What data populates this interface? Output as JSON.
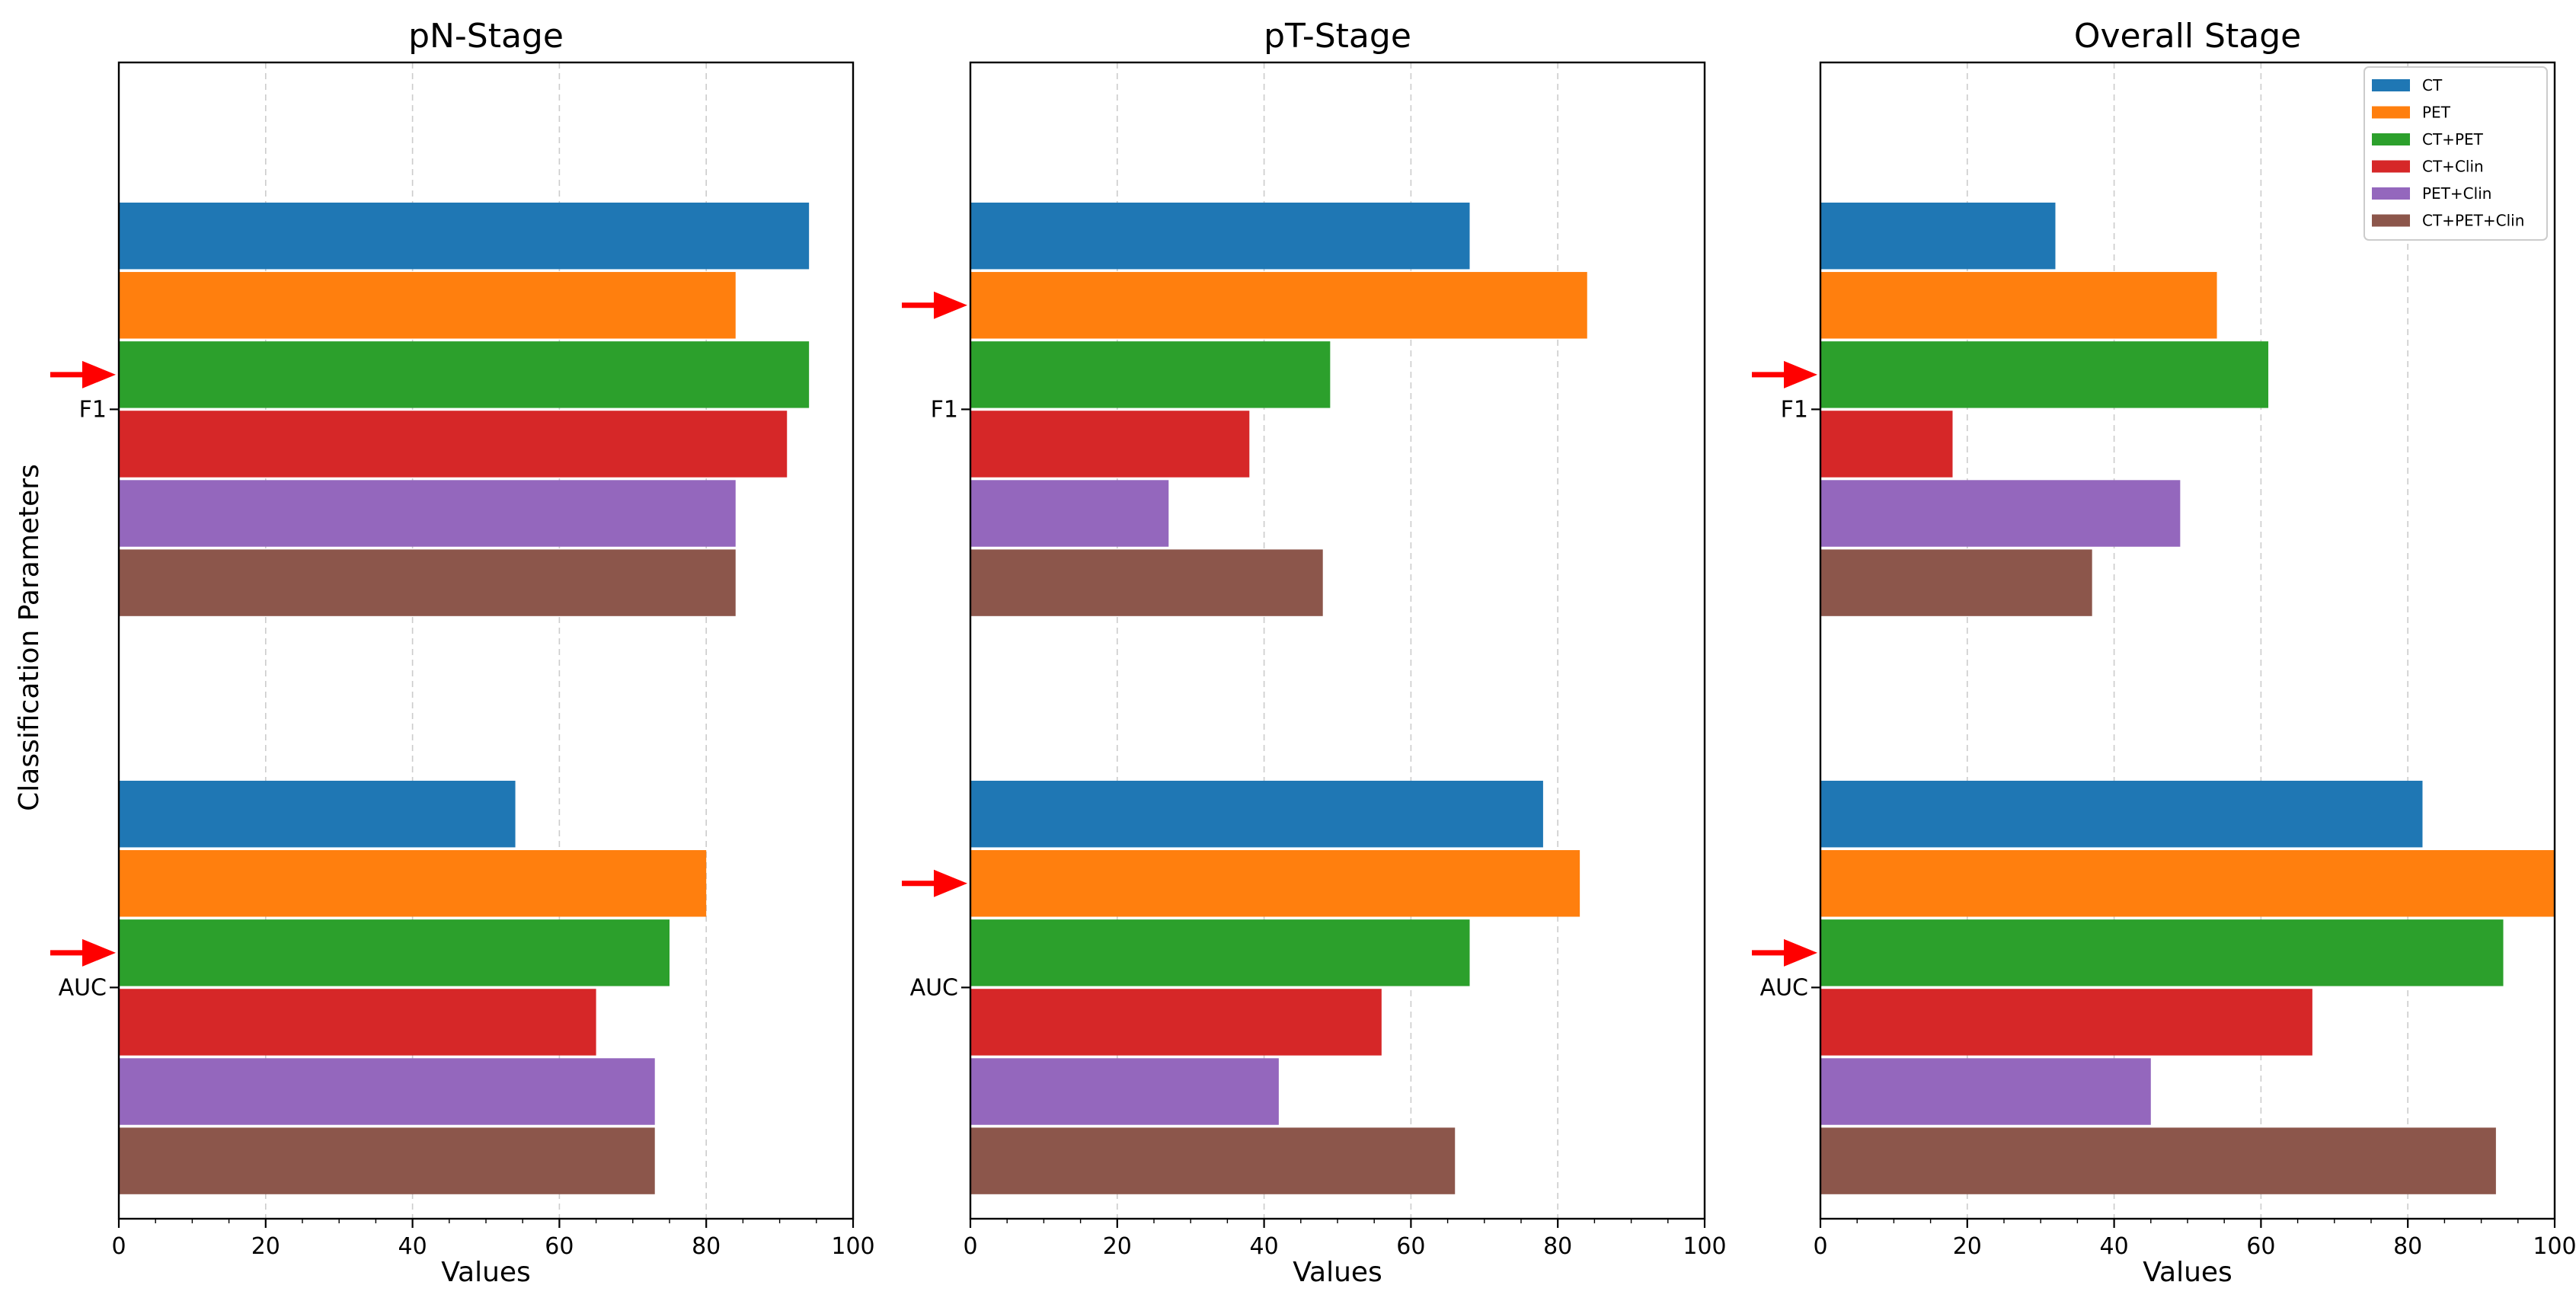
{
  "chart_data": {
    "type": "bar",
    "orientation": "horizontal",
    "ylabel": "Classification Parameters",
    "categories": [
      "F1",
      "AUC"
    ],
    "series_names": [
      "CT",
      "PET",
      "CT+PET",
      "CT+Clin",
      "PET+Clin",
      "CT+PET+Clin"
    ],
    "colors": [
      "#1f77b4",
      "#ff7f0e",
      "#2ca02c",
      "#d62728",
      "#9467bd",
      "#8c564b"
    ],
    "arrow_color": "#ff0000",
    "legend_location": "top-right of Overall Stage panel",
    "xlim": [
      0,
      100
    ],
    "xticks": [
      "0",
      "20",
      "40",
      "60",
      "80",
      "100"
    ],
    "grid": "x dashed",
    "panels": [
      {
        "title": "pN-Stage",
        "xlabel": "Values",
        "highlighted_series": "CT+PET",
        "series": [
          {
            "name": "CT",
            "values": [
              94,
              54
            ]
          },
          {
            "name": "PET",
            "values": [
              84,
              80
            ]
          },
          {
            "name": "CT+PET",
            "values": [
              94,
              75
            ]
          },
          {
            "name": "CT+Clin",
            "values": [
              91,
              65
            ]
          },
          {
            "name": "PET+Clin",
            "values": [
              84,
              73
            ]
          },
          {
            "name": "CT+PET+Clin",
            "values": [
              84,
              73
            ]
          }
        ]
      },
      {
        "title": "pT-Stage",
        "xlabel": "Values",
        "highlighted_series": "PET",
        "series": [
          {
            "name": "CT",
            "values": [
              68,
              78
            ]
          },
          {
            "name": "PET",
            "values": [
              84,
              83
            ]
          },
          {
            "name": "CT+PET",
            "values": [
              49,
              68
            ]
          },
          {
            "name": "CT+Clin",
            "values": [
              38,
              56
            ]
          },
          {
            "name": "PET+Clin",
            "values": [
              27,
              42
            ]
          },
          {
            "name": "CT+PET+Clin",
            "values": [
              48,
              66
            ]
          }
        ]
      },
      {
        "title": "Overall Stage",
        "xlabel": "Values",
        "highlighted_series": "CT+PET",
        "series": [
          {
            "name": "CT",
            "values": [
              32,
              82
            ]
          },
          {
            "name": "PET",
            "values": [
              54,
              100
            ]
          },
          {
            "name": "CT+PET",
            "values": [
              61,
              93
            ]
          },
          {
            "name": "CT+Clin",
            "values": [
              18,
              67
            ]
          },
          {
            "name": "PET+Clin",
            "values": [
              49,
              45
            ]
          },
          {
            "name": "CT+PET+Clin",
            "values": [
              37,
              92
            ]
          }
        ]
      }
    ]
  }
}
